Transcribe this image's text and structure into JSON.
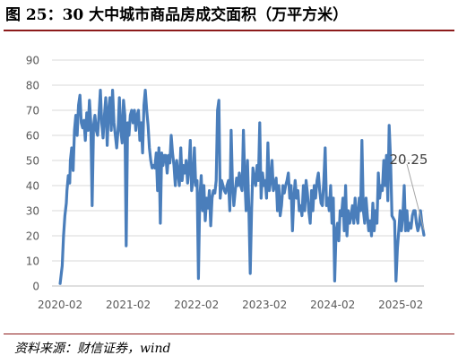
{
  "title": "图 25：30 大中城市商品房成交面积（万平方米）",
  "source": "资料来源：财信证券，wind",
  "chart_data": {
    "type": "line",
    "title": "",
    "xlabel": "",
    "ylabel": "",
    "ylim": [
      0,
      90
    ],
    "yticks": [
      0,
      10,
      20,
      30,
      40,
      50,
      60,
      70,
      80,
      90
    ],
    "xticks": [
      {
        "label": "2020-02",
        "x": 2020.0
      },
      {
        "label": "2021-02",
        "x": 2021.0
      },
      {
        "label": "2022-02",
        "x": 2022.0
      },
      {
        "label": "2023-02",
        "x": 2023.0
      },
      {
        "label": "2024-02",
        "x": 2024.0
      },
      {
        "label": "2025-02",
        "x": 2025.0
      }
    ],
    "xlim": [
      2019.88,
      2025.34
    ],
    "grid": true,
    "line_color": "#4a7ebb",
    "annotation": {
      "text": "20.25",
      "x": 2025.34,
      "y": 20.25
    },
    "series": [
      {
        "name": "",
        "points": [
          [
            2020.0,
            1
          ],
          [
            2020.03,
            8
          ],
          [
            2020.05,
            20
          ],
          [
            2020.07,
            28
          ],
          [
            2020.09,
            33
          ],
          [
            2020.1,
            38
          ],
          [
            2020.12,
            44
          ],
          [
            2020.14,
            41
          ],
          [
            2020.15,
            50
          ],
          [
            2020.17,
            55
          ],
          [
            2020.19,
            46
          ],
          [
            2020.21,
            62
          ],
          [
            2020.23,
            68
          ],
          [
            2020.25,
            60
          ],
          [
            2020.27,
            72
          ],
          [
            2020.29,
            76
          ],
          [
            2020.31,
            65
          ],
          [
            2020.33,
            63
          ],
          [
            2020.35,
            66
          ],
          [
            2020.37,
            58
          ],
          [
            2020.39,
            69
          ],
          [
            2020.41,
            62
          ],
          [
            2020.43,
            74
          ],
          [
            2020.45,
            65
          ],
          [
            2020.47,
            32
          ],
          [
            2020.49,
            64
          ],
          [
            2020.51,
            68
          ],
          [
            2020.53,
            62
          ],
          [
            2020.55,
            60
          ],
          [
            2020.57,
            68
          ],
          [
            2020.59,
            78
          ],
          [
            2020.61,
            65
          ],
          [
            2020.63,
            59
          ],
          [
            2020.65,
            68
          ],
          [
            2020.67,
            75
          ],
          [
            2020.69,
            56
          ],
          [
            2020.71,
            70
          ],
          [
            2020.73,
            75
          ],
          [
            2020.75,
            62
          ],
          [
            2020.77,
            78
          ],
          [
            2020.79,
            65
          ],
          [
            2020.81,
            60
          ],
          [
            2020.83,
            55
          ],
          [
            2020.85,
            62
          ],
          [
            2020.87,
            75
          ],
          [
            2020.89,
            62
          ],
          [
            2020.91,
            57
          ],
          [
            2020.93,
            74
          ],
          [
            2020.95,
            68
          ],
          [
            2020.97,
            16
          ],
          [
            2020.99,
            65
          ],
          [
            2021.01,
            60
          ],
          [
            2021.03,
            68
          ],
          [
            2021.05,
            70
          ],
          [
            2021.07,
            65
          ],
          [
            2021.09,
            70
          ],
          [
            2021.11,
            62
          ],
          [
            2021.13,
            68
          ],
          [
            2021.15,
            70
          ],
          [
            2021.17,
            58
          ],
          [
            2021.19,
            65
          ],
          [
            2021.21,
            53
          ],
          [
            2021.23,
            72
          ],
          [
            2021.25,
            78
          ],
          [
            2021.27,
            70
          ],
          [
            2021.29,
            64
          ],
          [
            2021.31,
            55
          ],
          [
            2021.33,
            50
          ],
          [
            2021.35,
            47
          ],
          [
            2021.37,
            48
          ],
          [
            2021.39,
            47
          ],
          [
            2021.41,
            53
          ],
          [
            2021.43,
            38
          ],
          [
            2021.45,
            55
          ],
          [
            2021.47,
            25
          ],
          [
            2021.49,
            53
          ],
          [
            2021.51,
            48
          ],
          [
            2021.53,
            52
          ],
          [
            2021.55,
            52
          ],
          [
            2021.57,
            45
          ],
          [
            2021.59,
            52
          ],
          [
            2021.61,
            49
          ],
          [
            2021.63,
            60
          ],
          [
            2021.65,
            53
          ],
          [
            2021.67,
            48
          ],
          [
            2021.69,
            40
          ],
          [
            2021.71,
            50
          ],
          [
            2021.73,
            45
          ],
          [
            2021.75,
            40
          ],
          [
            2021.77,
            55
          ],
          [
            2021.79,
            42
          ],
          [
            2021.81,
            48
          ],
          [
            2021.83,
            45
          ],
          [
            2021.85,
            50
          ],
          [
            2021.87,
            41
          ],
          [
            2021.89,
            47
          ],
          [
            2021.91,
            58
          ],
          [
            2021.93,
            38
          ],
          [
            2021.95,
            42
          ],
          [
            2021.97,
            55
          ],
          [
            2021.99,
            40
          ],
          [
            2022.01,
            42
          ],
          [
            2022.03,
            3
          ],
          [
            2022.05,
            35
          ],
          [
            2022.07,
            44
          ],
          [
            2022.09,
            30
          ],
          [
            2022.11,
            40
          ],
          [
            2022.13,
            26
          ],
          [
            2022.15,
            35
          ],
          [
            2022.17,
            31
          ],
          [
            2022.19,
            38
          ],
          [
            2022.21,
            24
          ],
          [
            2022.23,
            35
          ],
          [
            2022.25,
            38
          ],
          [
            2022.27,
            37
          ],
          [
            2022.29,
            42
          ],
          [
            2022.31,
            70
          ],
          [
            2022.33,
            74
          ],
          [
            2022.35,
            35
          ],
          [
            2022.37,
            42
          ],
          [
            2022.39,
            40
          ],
          [
            2022.41,
            38
          ],
          [
            2022.43,
            37
          ],
          [
            2022.45,
            40
          ],
          [
            2022.47,
            42
          ],
          [
            2022.49,
            30
          ],
          [
            2022.51,
            62
          ],
          [
            2022.53,
            40
          ],
          [
            2022.55,
            32
          ],
          [
            2022.57,
            38
          ],
          [
            2022.59,
            43
          ],
          [
            2022.61,
            40
          ],
          [
            2022.63,
            45
          ],
          [
            2022.65,
            40
          ],
          [
            2022.67,
            38
          ],
          [
            2022.69,
            62
          ],
          [
            2022.71,
            43
          ],
          [
            2022.73,
            30
          ],
          [
            2022.75,
            50
          ],
          [
            2022.77,
            30
          ],
          [
            2022.79,
            5
          ],
          [
            2022.81,
            30
          ],
          [
            2022.83,
            47
          ],
          [
            2022.85,
            43
          ],
          [
            2022.87,
            40
          ],
          [
            2022.89,
            48
          ],
          [
            2022.91,
            42
          ],
          [
            2022.93,
            65
          ],
          [
            2022.95,
            35
          ],
          [
            2022.97,
            45
          ],
          [
            2022.99,
            40
          ],
          [
            2023.01,
            42
          ],
          [
            2023.03,
            35
          ],
          [
            2023.05,
            57
          ],
          [
            2023.07,
            38
          ],
          [
            2023.09,
            42
          ],
          [
            2023.11,
            50
          ],
          [
            2023.13,
            38
          ],
          [
            2023.15,
            40
          ],
          [
            2023.17,
            43
          ],
          [
            2023.19,
            30
          ],
          [
            2023.21,
            40
          ],
          [
            2023.23,
            28
          ],
          [
            2023.25,
            32
          ],
          [
            2023.27,
            40
          ],
          [
            2023.29,
            37
          ],
          [
            2023.31,
            40
          ],
          [
            2023.33,
            42
          ],
          [
            2023.35,
            45
          ],
          [
            2023.37,
            35
          ],
          [
            2023.39,
            40
          ],
          [
            2023.41,
            22
          ],
          [
            2023.43,
            35
          ],
          [
            2023.45,
            42
          ],
          [
            2023.47,
            35
          ],
          [
            2023.49,
            38
          ],
          [
            2023.51,
            30
          ],
          [
            2023.53,
            32
          ],
          [
            2023.55,
            28
          ],
          [
            2023.57,
            40
          ],
          [
            2023.59,
            30
          ],
          [
            2023.61,
            42
          ],
          [
            2023.63,
            37
          ],
          [
            2023.65,
            30
          ],
          [
            2023.67,
            25
          ],
          [
            2023.69,
            38
          ],
          [
            2023.71,
            30
          ],
          [
            2023.73,
            40
          ],
          [
            2023.75,
            35
          ],
          [
            2023.77,
            42
          ],
          [
            2023.79,
            45
          ],
          [
            2023.81,
            38
          ],
          [
            2023.83,
            33
          ],
          [
            2023.85,
            32
          ],
          [
            2023.87,
            42
          ],
          [
            2023.89,
            55
          ],
          [
            2023.91,
            32
          ],
          [
            2023.93,
            35
          ],
          [
            2023.95,
            30
          ],
          [
            2023.97,
            40
          ],
          [
            2023.99,
            25
          ],
          [
            2024.01,
            35
          ],
          [
            2024.03,
            2
          ],
          [
            2024.05,
            22
          ],
          [
            2024.07,
            25
          ],
          [
            2024.09,
            18
          ],
          [
            2024.11,
            30
          ],
          [
            2024.13,
            28
          ],
          [
            2024.15,
            35
          ],
          [
            2024.17,
            22
          ],
          [
            2024.19,
            40
          ],
          [
            2024.21,
            20
          ],
          [
            2024.23,
            30
          ],
          [
            2024.25,
            25
          ],
          [
            2024.27,
            28
          ],
          [
            2024.29,
            32
          ],
          [
            2024.31,
            25
          ],
          [
            2024.33,
            35
          ],
          [
            2024.35,
            28
          ],
          [
            2024.37,
            25
          ],
          [
            2024.39,
            35
          ],
          [
            2024.41,
            30
          ],
          [
            2024.43,
            58
          ],
          [
            2024.45,
            30
          ],
          [
            2024.47,
            25
          ],
          [
            2024.49,
            35
          ],
          [
            2024.51,
            28
          ],
          [
            2024.53,
            22
          ],
          [
            2024.55,
            26
          ],
          [
            2024.57,
            20
          ],
          [
            2024.59,
            33
          ],
          [
            2024.61,
            22
          ],
          [
            2024.63,
            30
          ],
          [
            2024.65,
            25
          ],
          [
            2024.67,
            45
          ],
          [
            2024.69,
            35
          ],
          [
            2024.71,
            40
          ],
          [
            2024.73,
            38
          ],
          [
            2024.75,
            50
          ],
          [
            2024.77,
            40
          ],
          [
            2024.79,
            52
          ],
          [
            2024.81,
            34
          ],
          [
            2024.83,
            64
          ],
          [
            2024.85,
            50
          ],
          [
            2024.87,
            28
          ],
          [
            2024.89,
            27
          ],
          [
            2024.91,
            26
          ],
          [
            2024.93,
            2
          ],
          [
            2024.95,
            15
          ],
          [
            2024.97,
            22
          ],
          [
            2024.99,
            30
          ],
          [
            2025.01,
            22
          ],
          [
            2025.03,
            28
          ],
          [
            2025.05,
            40
          ],
          [
            2025.07,
            22
          ],
          [
            2025.09,
            30
          ],
          [
            2025.11,
            22
          ],
          [
            2025.13,
            25
          ],
          [
            2025.15,
            23
          ],
          [
            2025.17,
            28
          ],
          [
            2025.19,
            30
          ],
          [
            2025.21,
            30
          ],
          [
            2025.23,
            25
          ],
          [
            2025.25,
            22
          ],
          [
            2025.27,
            24
          ],
          [
            2025.29,
            30
          ],
          [
            2025.31,
            25
          ],
          [
            2025.34,
            20.25
          ]
        ]
      }
    ]
  }
}
